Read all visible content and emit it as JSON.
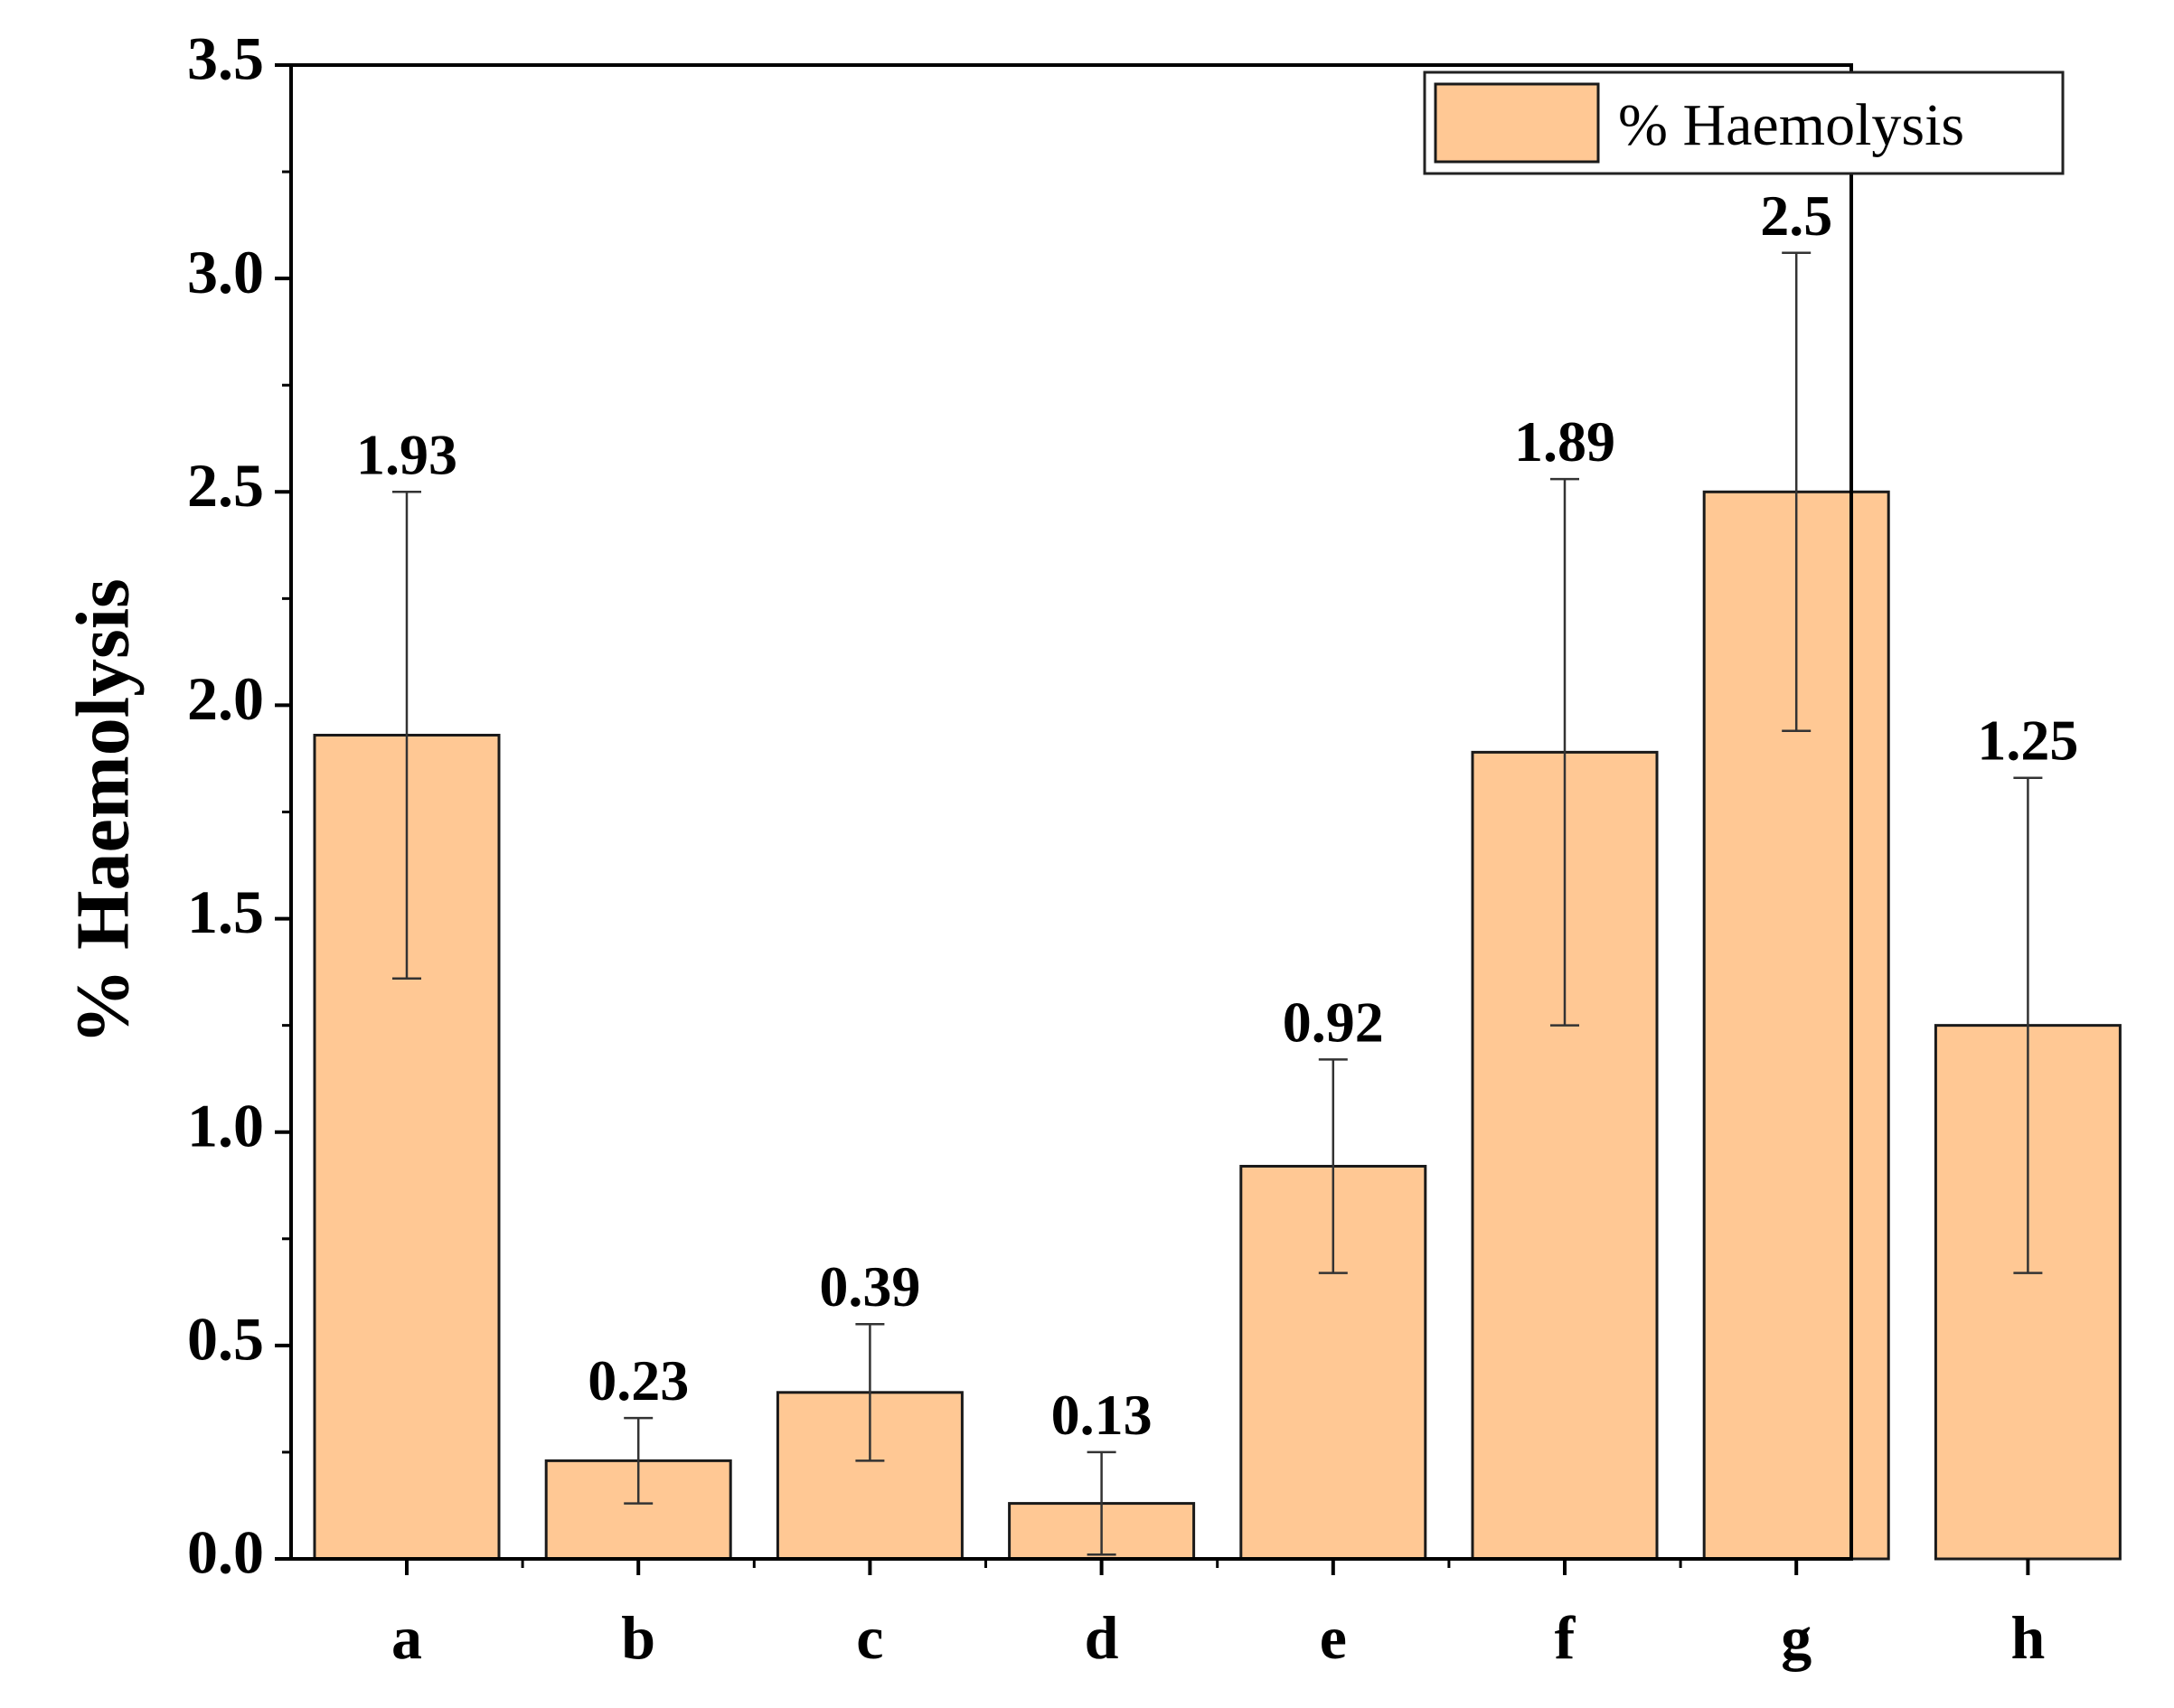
{
  "chart_data": {
    "type": "bar",
    "categories": [
      "a",
      "b",
      "c",
      "d",
      "e",
      "f",
      "g",
      "h"
    ],
    "series": [
      {
        "name": "% Haemolysis",
        "values": [
          1.93,
          0.23,
          0.39,
          0.13,
          0.92,
          1.89,
          2.5,
          1.25
        ],
        "errors": [
          0.57,
          0.1,
          0.16,
          0.12,
          0.25,
          0.64,
          0.56,
          0.58
        ],
        "value_labels": [
          "1.93",
          "0.23",
          "0.39",
          "0.13",
          "0.92",
          "1.89",
          "2.5",
          "1.25"
        ]
      }
    ],
    "title": "",
    "xlabel": "",
    "ylabel": "% Haemolysis",
    "ylim": [
      0,
      3.5
    ],
    "yticks": [
      0.0,
      0.5,
      1.0,
      1.5,
      2.0,
      2.5,
      3.0,
      3.5
    ],
    "ytick_labels": [
      "0.0",
      "0.5",
      "1.0",
      "1.5",
      "2.0",
      "2.5",
      "3.0",
      "3.5"
    ],
    "grid": false,
    "legend": {
      "position": "top-right",
      "label": "% Haemolysis"
    },
    "colors": {
      "bar_fill": "#ffc894",
      "bar_stroke": "#1a1a1a",
      "axis": "#000000"
    }
  }
}
